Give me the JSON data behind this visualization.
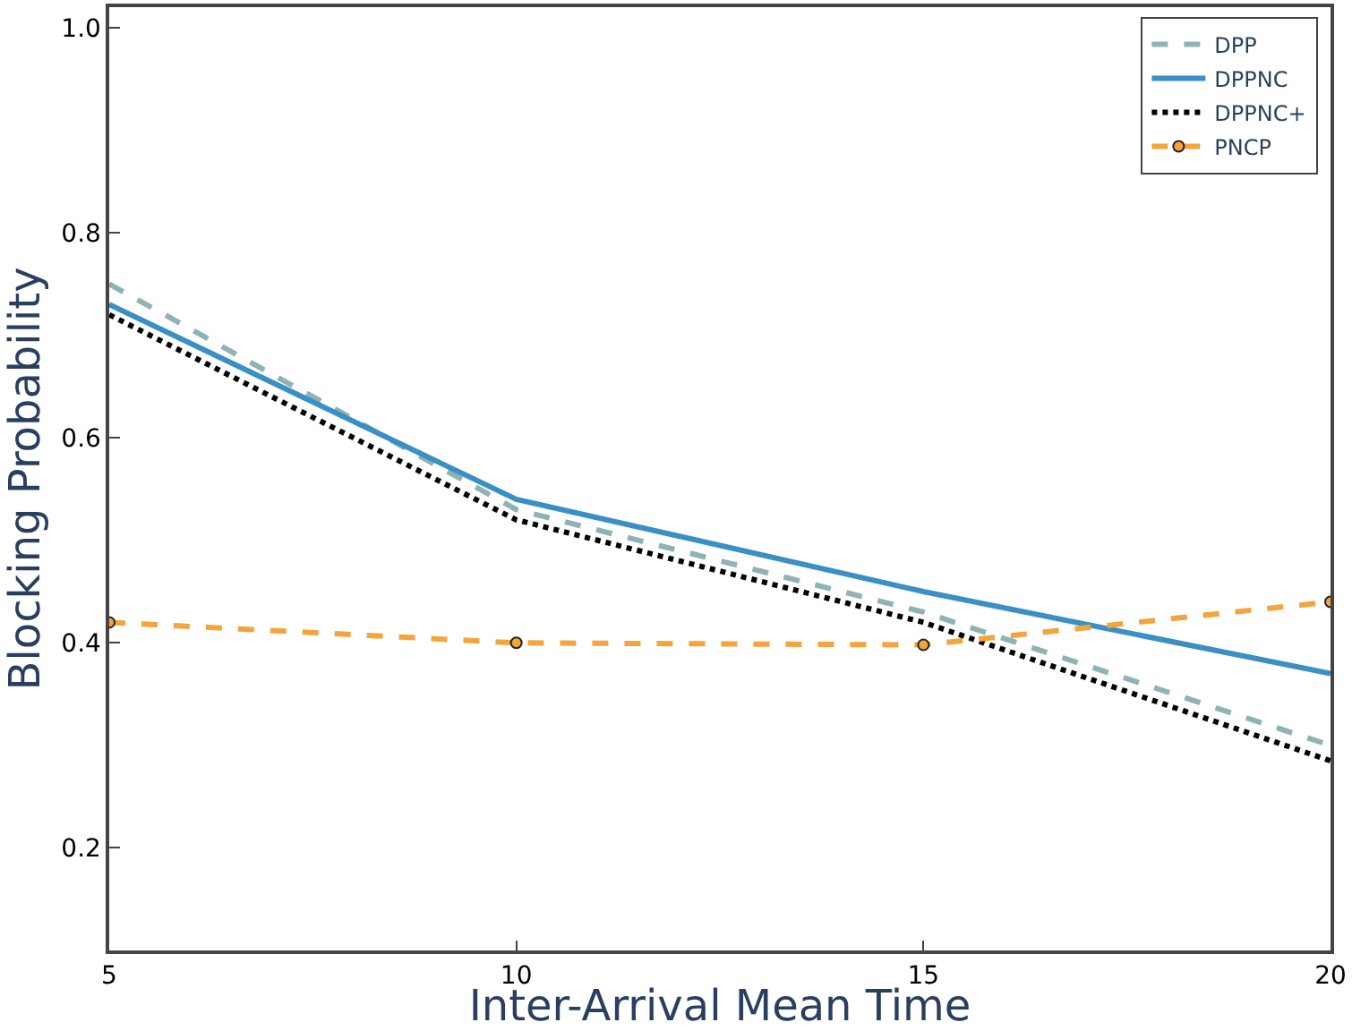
{
  "chart_data": {
    "type": "line",
    "xlabel": "Inter-Arrival Mean Time",
    "ylabel": "Blocking Probability",
    "x": [
      5,
      10,
      15,
      20
    ],
    "series": [
      {
        "name": "DPP",
        "color": "#8fb3b3",
        "line_style": "dashed",
        "values": [
          0.75,
          0.53,
          0.43,
          0.3
        ]
      },
      {
        "name": "DPPNC",
        "color": "#3a8fc4",
        "line_style": "solid",
        "values": [
          0.73,
          0.54,
          0.45,
          0.37
        ]
      },
      {
        "name": "DPPNC+",
        "color": "#000000",
        "line_style": "dotted",
        "values": [
          0.72,
          0.52,
          0.42,
          0.285
        ]
      },
      {
        "name": "PNCP",
        "color": "#f4a43c",
        "line_style": "dashed",
        "marker": "circle",
        "values": [
          0.42,
          0.4,
          0.398,
          0.44
        ]
      }
    ],
    "xlim": [
      5,
      20
    ],
    "xticks": [
      5,
      10,
      15,
      20
    ],
    "ylim": [
      0.1,
      1.02
    ],
    "yticks": [
      {
        "value": 0.2,
        "label": "0.2"
      },
      {
        "value": 0.4,
        "label": "0.4"
      },
      {
        "value": 0.6,
        "label": "0.6"
      },
      {
        "value": 0.8,
        "label": "0.8"
      },
      {
        "value": 1.0,
        "label": "1.0"
      }
    ],
    "grid": false,
    "legend": "top right"
  }
}
